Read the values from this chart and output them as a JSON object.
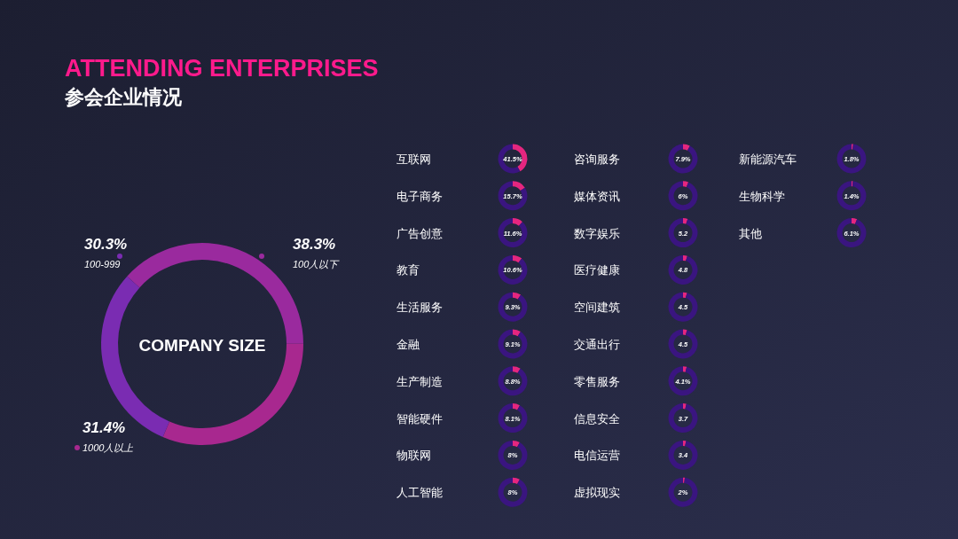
{
  "chart_data": [
    {
      "type": "donut",
      "title": "ATTENDING ENTERPRISES",
      "subtitle": "参会企业情况",
      "annotations": [
        "COMPANY SIZE"
      ],
      "categories": [
        "100人以下",
        "1000人以上",
        "100-999"
      ],
      "values": [
        38.3,
        31.4,
        30.3
      ],
      "value_labels": [
        "38.3%",
        "31.4%",
        "30.3%"
      ],
      "colors": [
        "#9a2a9e",
        "#a8288f",
        "#7a2cb2"
      ]
    },
    {
      "type": "donut",
      "title": "互联网",
      "annotations": [
        "41.5%"
      ],
      "categories": [
        null,
        null
      ],
      "values": [
        41.5,
        58.5
      ],
      "colors": [
        "#e5267f",
        "#3a1580"
      ]
    },
    {
      "type": "donut",
      "title": "电子商务",
      "annotations": [
        "15.7%"
      ],
      "categories": [
        null,
        null
      ],
      "values": [
        15.7,
        84.3
      ],
      "colors": [
        "#e5267f",
        "#3a1580"
      ]
    },
    {
      "type": "donut",
      "title": "广告创意",
      "annotations": [
        "11.6%"
      ],
      "categories": [
        null,
        null
      ],
      "values": [
        11.6,
        88.4
      ],
      "colors": [
        "#e5267f",
        "#3a1580"
      ]
    },
    {
      "type": "donut",
      "title": "教育",
      "annotations": [
        "10.6%"
      ],
      "categories": [
        null,
        null
      ],
      "values": [
        10.6,
        89.4
      ],
      "colors": [
        "#e5267f",
        "#3a1580"
      ]
    },
    {
      "type": "donut",
      "title": "生活服务",
      "annotations": [
        "9.3%"
      ],
      "categories": [
        null,
        null
      ],
      "values": [
        9.3,
        90.7
      ],
      "colors": [
        "#e5267f",
        "#3a1580"
      ]
    },
    {
      "type": "donut",
      "title": "金融",
      "annotations": [
        "9.1%"
      ],
      "categories": [
        null,
        null
      ],
      "values": [
        9.1,
        90.9
      ],
      "colors": [
        "#e5267f",
        "#3a1580"
      ]
    },
    {
      "type": "donut",
      "title": "生产制造",
      "annotations": [
        "8.8%"
      ],
      "categories": [
        null,
        null
      ],
      "values": [
        8.8,
        91.2
      ],
      "colors": [
        "#e5267f",
        "#3a1580"
      ]
    },
    {
      "type": "donut",
      "title": "智能硬件",
      "annotations": [
        "8.1%"
      ],
      "categories": [
        null,
        null
      ],
      "values": [
        8.1,
        91.9
      ],
      "colors": [
        "#e5267f",
        "#3a1580"
      ]
    },
    {
      "type": "donut",
      "title": "物联网",
      "annotations": [
        "8%"
      ],
      "categories": [
        null,
        null
      ],
      "values": [
        8,
        92
      ],
      "colors": [
        "#e5267f",
        "#3a1580"
      ]
    },
    {
      "type": "donut",
      "title": "人工智能",
      "annotations": [
        "8%"
      ],
      "categories": [
        null,
        null
      ],
      "values": [
        8,
        92
      ],
      "colors": [
        "#e5267f",
        "#3a1580"
      ]
    },
    {
      "type": "donut",
      "title": "咨询服务",
      "annotations": [
        "7.9%"
      ],
      "categories": [
        null,
        null
      ],
      "values": [
        7.9,
        92.1
      ],
      "colors": [
        "#e5267f",
        "#3a1580"
      ]
    },
    {
      "type": "donut",
      "title": "媒体资讯",
      "annotations": [
        "6%"
      ],
      "categories": [
        null,
        null
      ],
      "values": [
        6,
        94
      ],
      "colors": [
        "#e5267f",
        "#3a1580"
      ]
    },
    {
      "type": "donut",
      "title": "数字娱乐",
      "annotations": [
        "5.2"
      ],
      "categories": [
        null,
        null
      ],
      "values": [
        5.2,
        94.8
      ],
      "colors": [
        "#e5267f",
        "#3a1580"
      ]
    },
    {
      "type": "donut",
      "title": "医疗健康",
      "annotations": [
        "4.8"
      ],
      "categories": [
        null,
        null
      ],
      "values": [
        4.8,
        95.2
      ],
      "colors": [
        "#e5267f",
        "#3a1580"
      ]
    },
    {
      "type": "donut",
      "title": "空间建筑",
      "annotations": [
        "4.5"
      ],
      "categories": [
        null,
        null
      ],
      "values": [
        4.5,
        95.5
      ],
      "colors": [
        "#e5267f",
        "#3a1580"
      ]
    },
    {
      "type": "donut",
      "title": "交通出行",
      "annotations": [
        "4.5"
      ],
      "categories": [
        null,
        null
      ],
      "values": [
        4.5,
        95.5
      ],
      "colors": [
        "#e5267f",
        "#3a1580"
      ]
    },
    {
      "type": "donut",
      "title": "零售服务",
      "annotations": [
        "4.1%"
      ],
      "categories": [
        null,
        null
      ],
      "values": [
        4.1,
        95.9
      ],
      "colors": [
        "#e5267f",
        "#3a1580"
      ]
    },
    {
      "type": "donut",
      "title": "信息安全",
      "annotations": [
        "3.7"
      ],
      "categories": [
        null,
        null
      ],
      "values": [
        3.7,
        96.3
      ],
      "colors": [
        "#e5267f",
        "#3a1580"
      ]
    },
    {
      "type": "donut",
      "title": "电信运营",
      "annotations": [
        "3.4"
      ],
      "categories": [
        null,
        null
      ],
      "values": [
        3.4,
        96.6
      ],
      "colors": [
        "#e5267f",
        "#3a1580"
      ]
    },
    {
      "type": "donut",
      "title": "虚拟现实",
      "annotations": [
        "2%"
      ],
      "categories": [
        null,
        null
      ],
      "values": [
        2,
        98
      ],
      "colors": [
        "#e5267f",
        "#3a1580"
      ]
    },
    {
      "type": "donut",
      "title": "新能源汽车",
      "annotations": [
        "1.8%"
      ],
      "categories": [
        null,
        null
      ],
      "values": [
        1.8,
        98.2
      ],
      "colors": [
        "#e5267f",
        "#3a1580"
      ]
    },
    {
      "type": "donut",
      "title": "生物科学",
      "annotations": [
        "1.4%"
      ],
      "categories": [
        null,
        null
      ],
      "values": [
        1.4,
        98.6
      ],
      "colors": [
        "#e5267f",
        "#3a1580"
      ]
    },
    {
      "type": "donut",
      "title": "其他",
      "annotations": [
        "6.1%"
      ],
      "categories": [
        null,
        null
      ],
      "values": [
        6.1,
        93.9
      ],
      "colors": [
        "#e5267f",
        "#3a1580"
      ]
    }
  ]
}
